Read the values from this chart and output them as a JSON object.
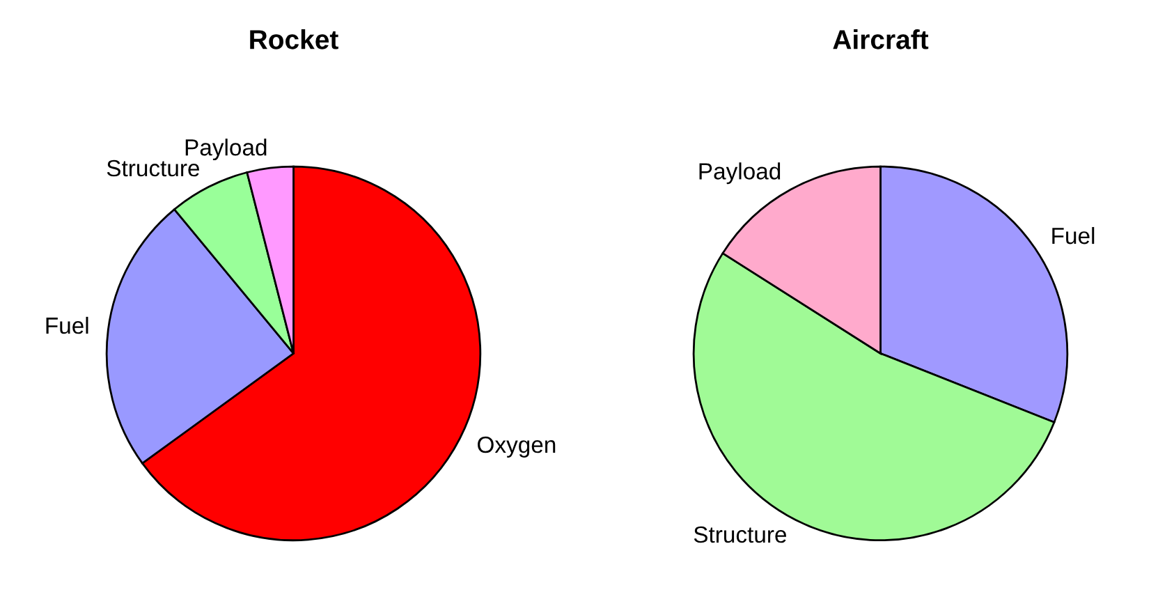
{
  "chart_data": [
    {
      "type": "pie",
      "title": "Rocket",
      "categories": [
        "Oxygen",
        "Fuel",
        "Structure",
        "Payload"
      ],
      "values": [
        65,
        24,
        7,
        4
      ],
      "colors": [
        "#ff0000",
        "#9999ff",
        "#99ff99",
        "#ff99ff"
      ]
    },
    {
      "type": "pie",
      "title": "Aircraft",
      "categories": [
        "Fuel",
        "Structure",
        "Payload"
      ],
      "values": [
        31,
        53,
        16
      ],
      "colors": [
        "#a099ff",
        "#a0fa96",
        "#ffaacc"
      ]
    }
  ]
}
